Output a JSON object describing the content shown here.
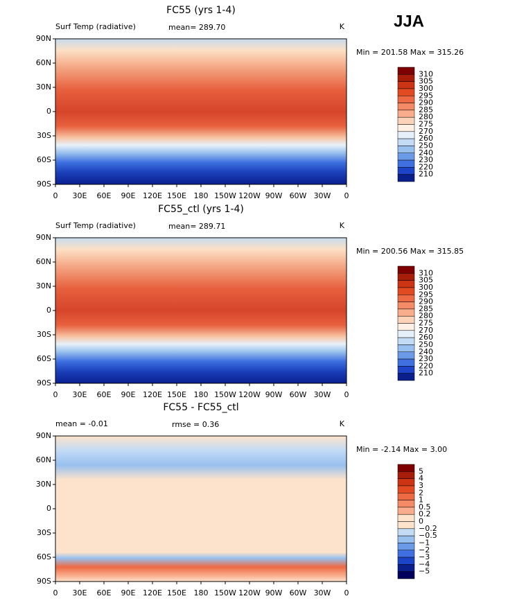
{
  "header": {
    "season": "JJA"
  },
  "panels": [
    {
      "title": "FC55 (yrs 1-4)",
      "left_label": "Surf Temp (radiative)",
      "center_label": "mean= 289.70",
      "units": "K",
      "min_max": "Min = 201.58 Max = 315.26",
      "y_axis_labels": [
        "90N",
        "60N",
        "30N",
        "0",
        "30S",
        "60S",
        "90S"
      ],
      "x_axis_labels": [
        "0",
        "30E",
        "60E",
        "90E",
        "120E",
        "150E",
        "180",
        "150W",
        "120W",
        "90W",
        "60W",
        "30W",
        "0"
      ],
      "colorbar": {
        "labels": [
          "310",
          "305",
          "300",
          "295",
          "290",
          "285",
          "280",
          "275",
          "270",
          "260",
          "250",
          "240",
          "230",
          "220",
          "210"
        ],
        "colors": [
          "#7f0000",
          "#a81c0a",
          "#cc3414",
          "#e24a22",
          "#ee6a44",
          "#f58b66",
          "#f9ad8c",
          "#fcd2b8",
          "#fef0e4",
          "#e6f0fb",
          "#c3dbf5",
          "#98c0ef",
          "#6a9ae8",
          "#3f6fe0",
          "#1d44c8",
          "#0a1e8c"
        ]
      }
    },
    {
      "title": "FC55_ctl (yrs 1-4)",
      "left_label": "Surf Temp (radiative)",
      "center_label": "mean= 289.71",
      "units": "K",
      "min_max": "Min = 200.56 Max = 315.85",
      "y_axis_labels": [
        "90N",
        "60N",
        "30N",
        "0",
        "30S",
        "60S",
        "90S"
      ],
      "x_axis_labels": [
        "0",
        "30E",
        "60E",
        "90E",
        "120E",
        "150E",
        "180",
        "150W",
        "120W",
        "90W",
        "60W",
        "30W",
        "0"
      ],
      "colorbar": {
        "labels": [
          "310",
          "305",
          "300",
          "295",
          "290",
          "285",
          "280",
          "275",
          "270",
          "260",
          "250",
          "240",
          "230",
          "220",
          "210"
        ],
        "colors": [
          "#7f0000",
          "#a81c0a",
          "#cc3414",
          "#e24a22",
          "#ee6a44",
          "#f58b66",
          "#f9ad8c",
          "#fcd2b8",
          "#fef0e4",
          "#e6f0fb",
          "#c3dbf5",
          "#98c0ef",
          "#6a9ae8",
          "#3f6fe0",
          "#1d44c8",
          "#0a1e8c"
        ]
      }
    },
    {
      "title": "FC55 - FC55_ctl",
      "left_label": "mean =   -0.01",
      "center_label": "rmse =    0.36",
      "units": "K",
      "min_max": "Min =   -2.14 Max =    3.00",
      "y_axis_labels": [
        "90N",
        "60N",
        "30N",
        "0",
        "30S",
        "60S",
        "90S"
      ],
      "x_axis_labels": [
        "0",
        "30E",
        "60E",
        "90E",
        "120E",
        "150E",
        "180",
        "150W",
        "120W",
        "90W",
        "60W",
        "30W",
        "0"
      ],
      "colorbar": {
        "labels": [
          "5",
          "4",
          "3",
          "2",
          "1",
          "0.5",
          "0.2",
          "0",
          "−0.2",
          "−0.5",
          "−1",
          "−2",
          "−3",
          "−4",
          "−5"
        ],
        "colors": [
          "#7f0000",
          "#a81c0a",
          "#cc3414",
          "#e24a22",
          "#ee6a44",
          "#f58b66",
          "#f9ad8c",
          "#fde3cc",
          "#fde3cc",
          "#c3dbf5",
          "#98c0ef",
          "#6a9ae8",
          "#3f6fe0",
          "#1d44c8",
          "#0a1e8c",
          "#00005c"
        ]
      }
    }
  ]
}
